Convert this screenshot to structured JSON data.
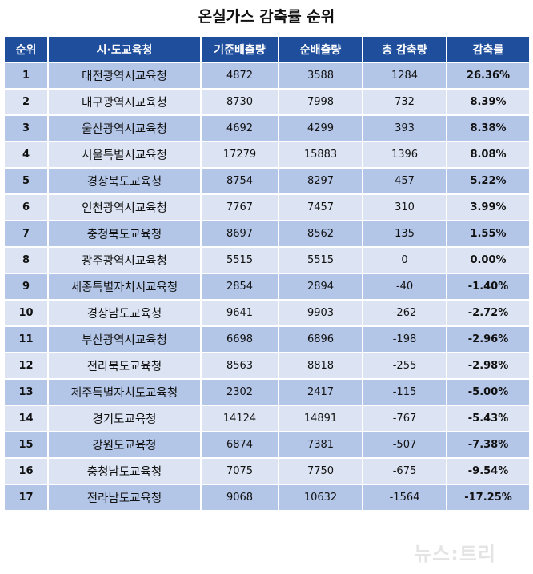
{
  "title": "온실가스 감축률 순위",
  "table": {
    "headers": [
      "순위",
      "시·도교육청",
      "기준배출량",
      "순배출량",
      "총 감축량",
      "감축률"
    ],
    "rows": [
      [
        "1",
        "대전광역시교육청",
        "4872",
        "3588",
        "1284",
        "26.36%"
      ],
      [
        "2",
        "대구광역시교육청",
        "8730",
        "7998",
        "732",
        "8.39%"
      ],
      [
        "3",
        "울산광역시교육청",
        "4692",
        "4299",
        "393",
        "8.38%"
      ],
      [
        "4",
        "서울특별시교육청",
        "17279",
        "15883",
        "1396",
        "8.08%"
      ],
      [
        "5",
        "경상북도교육청",
        "8754",
        "8297",
        "457",
        "5.22%"
      ],
      [
        "6",
        "인천광역시교육청",
        "7767",
        "7457",
        "310",
        "3.99%"
      ],
      [
        "7",
        "충청북도교육청",
        "8697",
        "8562",
        "135",
        "1.55%"
      ],
      [
        "8",
        "광주광역시교육청",
        "5515",
        "5515",
        "0",
        "0.00%"
      ],
      [
        "9",
        "세종특별자치시교육청",
        "2854",
        "2894",
        "-40",
        "-1.40%"
      ],
      [
        "10",
        "경상남도교육청",
        "9641",
        "9903",
        "-262",
        "-2.72%"
      ],
      [
        "11",
        "부산광역시교육청",
        "6698",
        "6896",
        "-198",
        "-2.96%"
      ],
      [
        "12",
        "전라북도교육청",
        "8563",
        "8818",
        "-255",
        "-2.98%"
      ],
      [
        "13",
        "제주특별자치도교육청",
        "2302",
        "2417",
        "-115",
        "-5.00%"
      ],
      [
        "14",
        "경기도교육청",
        "14124",
        "14891",
        "-767",
        "-5.43%"
      ],
      [
        "15",
        "강원도교육청",
        "6874",
        "7381",
        "-507",
        "-7.38%"
      ],
      [
        "16",
        "충청남도교육청",
        "7075",
        "7750",
        "-675",
        "-9.54%"
      ],
      [
        "17",
        "전라남도교육청",
        "9068",
        "10632",
        "-1564",
        "-17.25%"
      ]
    ]
  },
  "watermark": "뉴스:트리",
  "colors": {
    "header_bg": "#1f4e9c",
    "row_odd_bg": "#b4c6e7",
    "row_even_bg": "#dce3f2"
  }
}
